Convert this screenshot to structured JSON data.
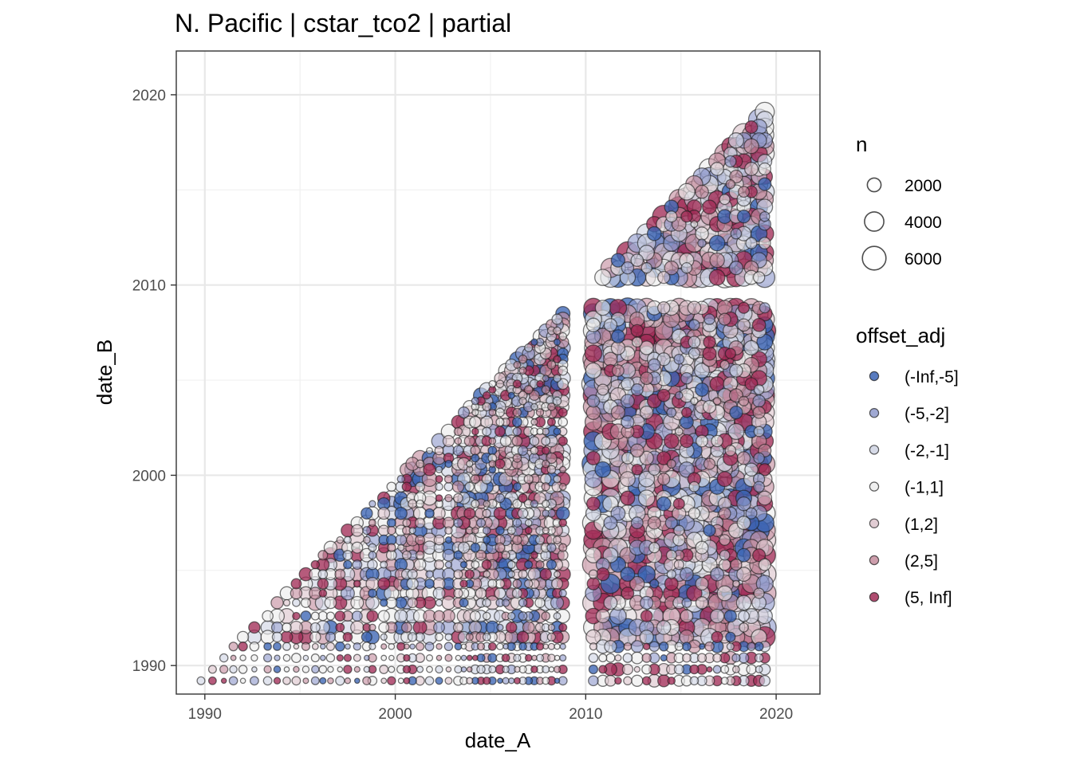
{
  "chart_data": {
    "type": "scatter",
    "title": "N. Pacific | cstar_tco2 | partial",
    "xlabel": "date_A",
    "ylabel": "date_B",
    "xlim": [
      1988.5,
      2022.3
    ],
    "ylim": [
      1988.5,
      2022.3
    ],
    "xticks": [
      1990,
      2000,
      2010,
      2020
    ],
    "yticks": [
      1990,
      2000,
      2010,
      2020
    ],
    "grid": true,
    "legend_position": "right",
    "size_legend": {
      "title": "n",
      "values": [
        2000,
        4000,
        6000
      ],
      "labels": [
        "2000",
        "4000",
        "6000"
      ]
    },
    "color_legend": {
      "title": "offset_adj",
      "categories": [
        {
          "label": "(-Inf,-5]",
          "color": "#3b64b4"
        },
        {
          "label": "(-5,-2]",
          "color": "#8f9acb"
        },
        {
          "label": "(-2,-1]",
          "color": "#cfd3e3"
        },
        {
          "label": "(-1,1]",
          "color": "#ececec"
        },
        {
          "label": "(1,2]",
          "color": "#dcc3cb"
        },
        {
          "label": "(2,5]",
          "color": "#c48d9e"
        },
        {
          "label": "(5, Inf]",
          "color": "#a12d57"
        }
      ]
    },
    "cruise_dates": [
      1989.2,
      1989.8,
      1990.4,
      1991.0,
      1991.5,
      1992.0,
      1992.6,
      1993.3,
      1993.8,
      1994.3,
      1994.8,
      1995.3,
      1995.8,
      1996.2,
      1996.6,
      1997.1,
      1997.5,
      1998.0,
      1998.5,
      1998.8,
      1999.4,
      1999.8,
      2000.3,
      2000.6,
      2000.9,
      2001.3,
      2001.8,
      2002.3,
      2002.8,
      2003.3,
      2003.6,
      2003.9,
      2004.2,
      2004.5,
      2004.8,
      2005.1,
      2005.5,
      2005.8,
      2006.1,
      2006.4,
      2006.7,
      2007.0,
      2007.3,
      2007.6,
      2007.9,
      2008.2,
      2008.5,
      2008.8,
      2010.4,
      2010.9,
      2011.3,
      2011.7,
      2012.2,
      2012.7,
      2013.2,
      2013.6,
      2014.1,
      2014.5,
      2014.9,
      2015.3,
      2015.7,
      2016.1,
      2016.5,
      2016.9,
      2017.3,
      2017.6,
      2017.9,
      2018.3,
      2018.7,
      2019.1,
      2019.4
    ],
    "point_rule": "one point for every pair (date_A, date_B) of cruise dates with date_B < date_A; color = offset_adj class, size = n",
    "n_range": [
      50,
      7000
    ]
  }
}
